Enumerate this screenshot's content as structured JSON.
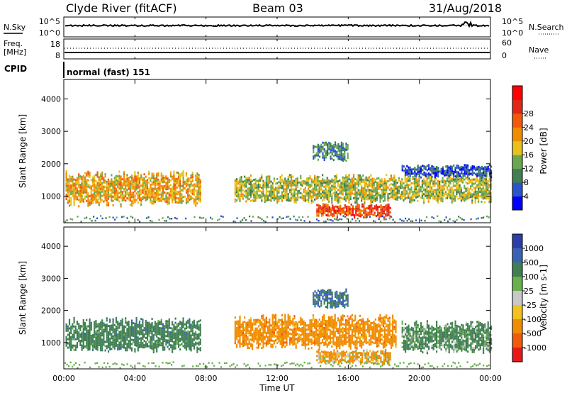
{
  "header": {
    "site": "Clyde River (fitACF)",
    "beam": "Beam 03",
    "date": "31/Aug/2018"
  },
  "nsky_panel": {
    "left_label": "N.Sky",
    "right_label": "N.Search",
    "ticks_left": [
      "10^5",
      "10^0"
    ],
    "ticks_right": [
      "10^5",
      "10^0"
    ]
  },
  "freq_panel": {
    "left_label_1": "Freq.",
    "left_label_2": "[MHz]",
    "right_label": "Nave",
    "ticks_left": [
      "18",
      "8"
    ],
    "ticks_right": [
      "60",
      "0"
    ]
  },
  "cpid_panel": {
    "left_label": "CPID",
    "value": "normal (fast) 151"
  },
  "chart_data": [
    {
      "type": "heatmap",
      "name": "power",
      "ylabel": "Slant Range [km]",
      "yticks": [
        1000,
        2000,
        3000,
        4000
      ],
      "ylim": [
        180,
        4600
      ],
      "xlim_hours": [
        0,
        24
      ],
      "colorbar_label": "Power [dB]",
      "colorbar_ticks": [
        "4",
        "8",
        "12",
        "16",
        "20",
        "24",
        "28"
      ],
      "colorbar_colors": [
        "#0000ff",
        "#2a55c8",
        "#3f7f52",
        "#6aa84f",
        "#e8c11c",
        "#f08c00",
        "#f05a0a",
        "#e12818",
        "#ff0000"
      ],
      "echo_regions": [
        {
          "t_start": 0.1,
          "t_end": 7.7,
          "r_min": 700,
          "r_max": 1800,
          "level": 20
        },
        {
          "t_start": 9.6,
          "t_end": 24.0,
          "r_min": 800,
          "r_max": 1700,
          "level": 16
        },
        {
          "t_start": 14.2,
          "t_end": 18.4,
          "r_min": 350,
          "r_max": 800,
          "level": 28
        },
        {
          "t_start": 14.0,
          "t_end": 16.0,
          "r_min": 2100,
          "r_max": 2700,
          "level": 10
        },
        {
          "t_start": 19.0,
          "t_end": 24.0,
          "r_min": 1600,
          "r_max": 2000,
          "level": 6
        }
      ]
    },
    {
      "type": "heatmap",
      "name": "velocity",
      "ylabel": "Slant Range [km]",
      "yticks": [
        1000,
        2000,
        3000,
        4000
      ],
      "ylim": [
        180,
        4600
      ],
      "xlim_hours": [
        0,
        24
      ],
      "colorbar_label": "Velocity [m s-1]",
      "colorbar_ticks": [
        "1000",
        "500",
        "100",
        "25",
        "-25",
        "-100",
        "-500",
        "-1000"
      ],
      "colorbar_colors": [
        "#2a3fa8",
        "#3a62b4",
        "#3f7f52",
        "#6ab04c",
        "#c8c8c8",
        "#f3c21c",
        "#f08c00",
        "#f05a0a",
        "#e81818"
      ],
      "echo_regions": [
        {
          "t_start": 0.1,
          "t_end": 7.7,
          "r_min": 700,
          "r_max": 1800,
          "velocity": 300
        },
        {
          "t_start": 9.6,
          "t_end": 18.7,
          "r_min": 800,
          "r_max": 1900,
          "velocity": -300
        },
        {
          "t_start": 14.2,
          "t_end": 18.4,
          "r_min": 350,
          "r_max": 800,
          "velocity": -150
        },
        {
          "t_start": 19.0,
          "t_end": 24.0,
          "r_min": 700,
          "r_max": 1700,
          "velocity": 200
        },
        {
          "t_start": 14.0,
          "t_end": 16.0,
          "r_min": 2100,
          "r_max": 2700,
          "velocity": 500
        }
      ]
    }
  ],
  "xaxis": {
    "label": "Time UT",
    "ticks": [
      "00:00",
      "04:00",
      "08:00",
      "12:00",
      "16:00",
      "20:00",
      "00:00"
    ]
  }
}
